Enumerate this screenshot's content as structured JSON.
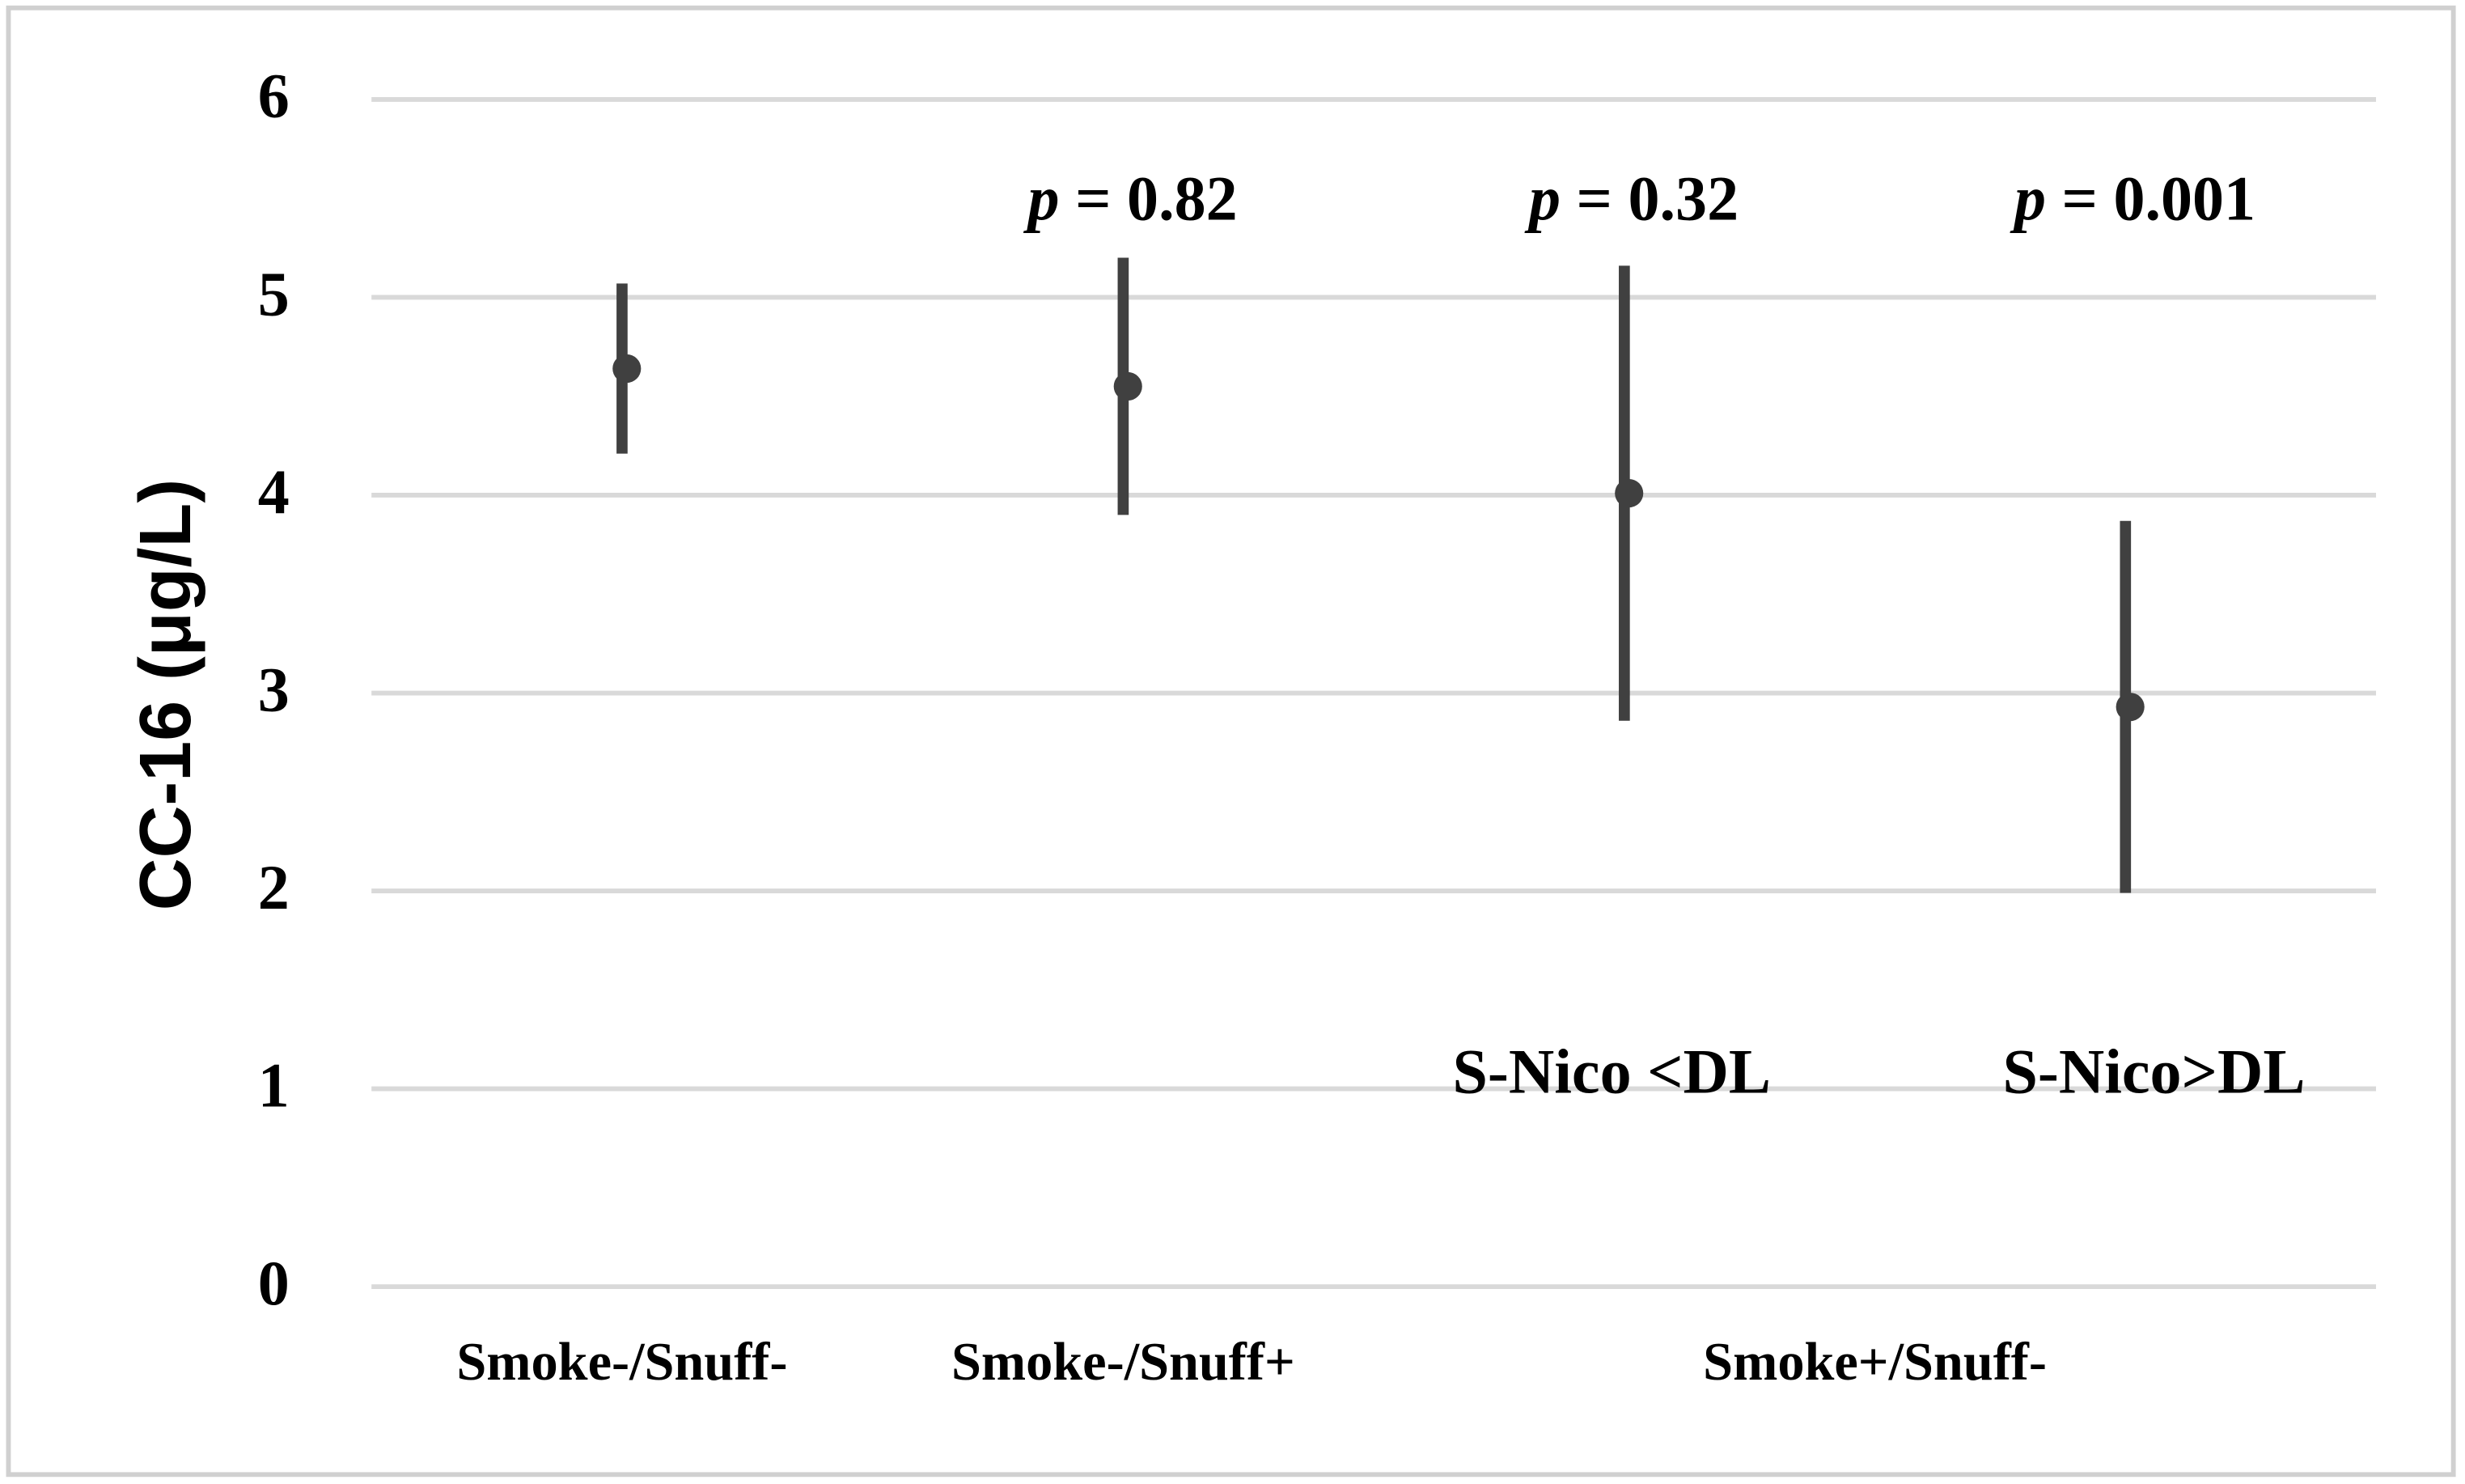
{
  "chart_data": {
    "type": "errorbar",
    "y_label": "CC-16 (μg/L)",
    "categories": [
      "Smoke-/Snuff-",
      "Smoke-/Snuff+",
      "S-Nico <DL",
      "S-Nico>DL"
    ],
    "group_labels": [
      {
        "label": "Smoke+/Snuff-",
        "categories": [
          2,
          3
        ]
      }
    ],
    "series": [
      {
        "color": "#404040",
        "values": [
          4.64,
          4.55,
          4.01,
          2.93
        ],
        "errors": [
          0.43,
          0.65,
          1.15,
          0.94
        ]
      }
    ],
    "annotations": [
      {
        "category": 1,
        "italic": "p",
        "text": "= 0.82"
      },
      {
        "category": 2,
        "italic": "p",
        "text": "= 0.32"
      },
      {
        "category": 3,
        "italic": "p",
        "text": "= 0.001"
      }
    ],
    "ylim": [
      0,
      6
    ],
    "yticks": [
      0,
      1,
      2,
      3,
      4,
      5,
      6
    ],
    "grid": true
  }
}
